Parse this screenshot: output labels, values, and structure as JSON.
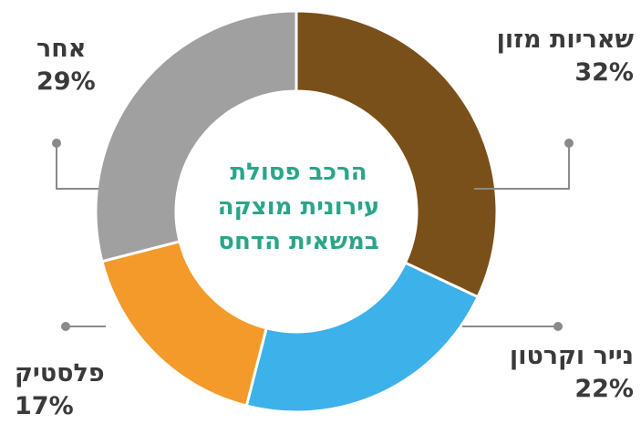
{
  "chart_data": {
    "type": "pie",
    "title_lines": [
      "הרכב פסולת",
      "עירונית מוצקה",
      "במשאית הדחס"
    ],
    "categories": [
      "שאריות מזון",
      "נייר וקרטון",
      "פלסטיק",
      "אחר"
    ],
    "values": [
      32,
      22,
      17,
      29
    ],
    "value_labels": [
      "32%",
      "22%",
      "17%",
      "29%"
    ],
    "colors": [
      "#7a501a",
      "#3db1e9",
      "#f39a2b",
      "#a0a0a0"
    ],
    "connector_color": "#8a8a8a",
    "title_color": "#2aa58a",
    "legend": "none"
  }
}
